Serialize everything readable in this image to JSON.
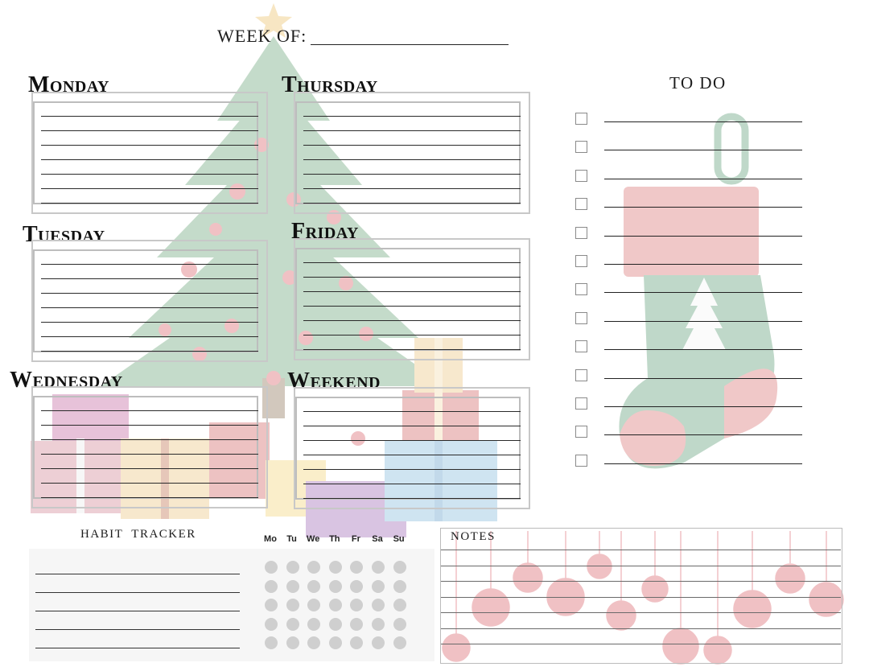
{
  "header": {
    "week_of_label": "WEEK OF:"
  },
  "days": [
    {
      "key": "monday",
      "label": "Monday"
    },
    {
      "key": "tuesday",
      "label": "Tuesday"
    },
    {
      "key": "wednesday",
      "label": "Wednesday"
    },
    {
      "key": "thursday",
      "label": "Thursday"
    },
    {
      "key": "friday",
      "label": "Friday"
    },
    {
      "key": "weekend",
      "label": "Weekend"
    }
  ],
  "todo": {
    "title": "TO DO",
    "item_count": 13
  },
  "habit_tracker": {
    "title": "HABIT  TRACKER",
    "weekdays": [
      "Mo",
      "Tu",
      "We",
      "Th",
      "Fr",
      "Sa",
      "Su"
    ],
    "rows": 5
  },
  "notes": {
    "title": "NOTES"
  },
  "colors": {
    "tree_green": "#5f9a63",
    "ornament_red": "#c9484f",
    "stocking_green": "#3f8a5d",
    "dot_gray": "#cfcfcf"
  }
}
